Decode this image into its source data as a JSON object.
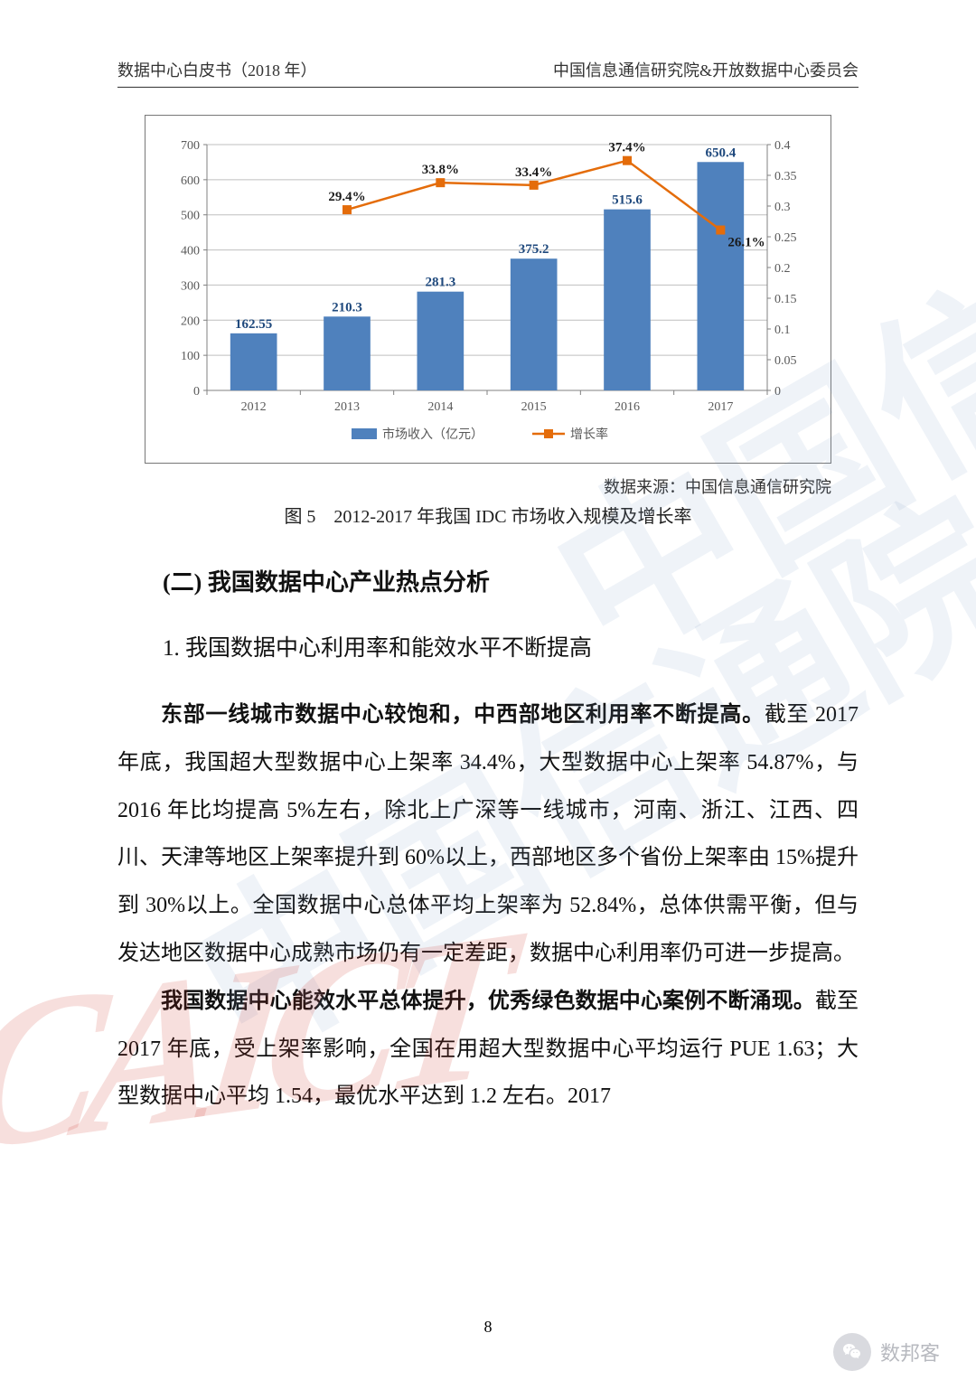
{
  "header": {
    "left": "数据中心白皮书（2018 年）",
    "right": "中国信息通信研究院&开放数据中心委员会"
  },
  "chart": {
    "type": "bar+line",
    "categories": [
      "2012",
      "2013",
      "2014",
      "2015",
      "2016",
      "2017"
    ],
    "bars": {
      "label": "市场收入（亿元）",
      "values": [
        162.55,
        210.3,
        281.3,
        375.2,
        515.6,
        650.4
      ],
      "color": "#4f81bd",
      "value_labels": [
        "162.55",
        "210.3",
        "281.3",
        "375.2",
        "515.6",
        "650.4"
      ]
    },
    "line": {
      "label": "增长率",
      "values": [
        null,
        0.294,
        0.338,
        0.334,
        0.374,
        0.261
      ],
      "value_labels": [
        null,
        "29.4%",
        "33.8%",
        "33.4%",
        "37.4%",
        "26.1%"
      ],
      "color": "#e46c0a",
      "marker": "square"
    },
    "y_left": {
      "min": 0,
      "max": 700,
      "step": 100
    },
    "y_right": {
      "min": 0,
      "max": 0.4,
      "step": 0.05,
      "labels": [
        "0",
        "0.05",
        "0.1",
        "0.15",
        "0.2",
        "0.25",
        "0.3",
        "0.35",
        "0.4"
      ]
    },
    "background": "#ffffff",
    "grid_color": "#bfbfbf",
    "axis_color": "#808080",
    "tick_fontsize": 14,
    "label_fontsize": 14,
    "value_fontsize": 15,
    "value_fontweight": "bold",
    "bar_width_ratio": 0.5
  },
  "chart_source": "数据来源：中国信息通信研究院",
  "chart_caption": "图 5　2012-2017 年我国 IDC 市场收入规模及增长率",
  "section_heading": "(二) 我国数据中心产业热点分析",
  "sub_heading": "1. 我国数据中心利用率和能效水平不断提高",
  "para1": {
    "bold": "东部一线城市数据中心较饱和，中西部地区利用率不断提高。",
    "rest": "截至 2017 年底，我国超大型数据中心上架率 34.4%，大型数据中心上架率 54.87%，与 2016 年比均提高 5%左右，除北上广深等一线城市，河南、浙江、江西、四川、天津等地区上架率提升到 60%以上，西部地区多个省份上架率由 15%提升到 30%以上。全国数据中心总体平均上架率为 52.84%，总体供需平衡，但与发达地区数据中心成熟市场仍有一定差距，数据中心利用率仍可进一步提高。"
  },
  "para2": {
    "bold": "我国数据中心能效水平总体提升，优秀绿色数据中心案例不断涌现。",
    "rest": "截至 2017 年底，受上架率影响，全国在用超大型数据中心平均运行 PUE 1.63；大型数据中心平均 1.54，最优水平达到 1.2 左右。2017"
  },
  "page_number": "8",
  "footer_label": "数邦客",
  "watermark_text": "中国信通院"
}
